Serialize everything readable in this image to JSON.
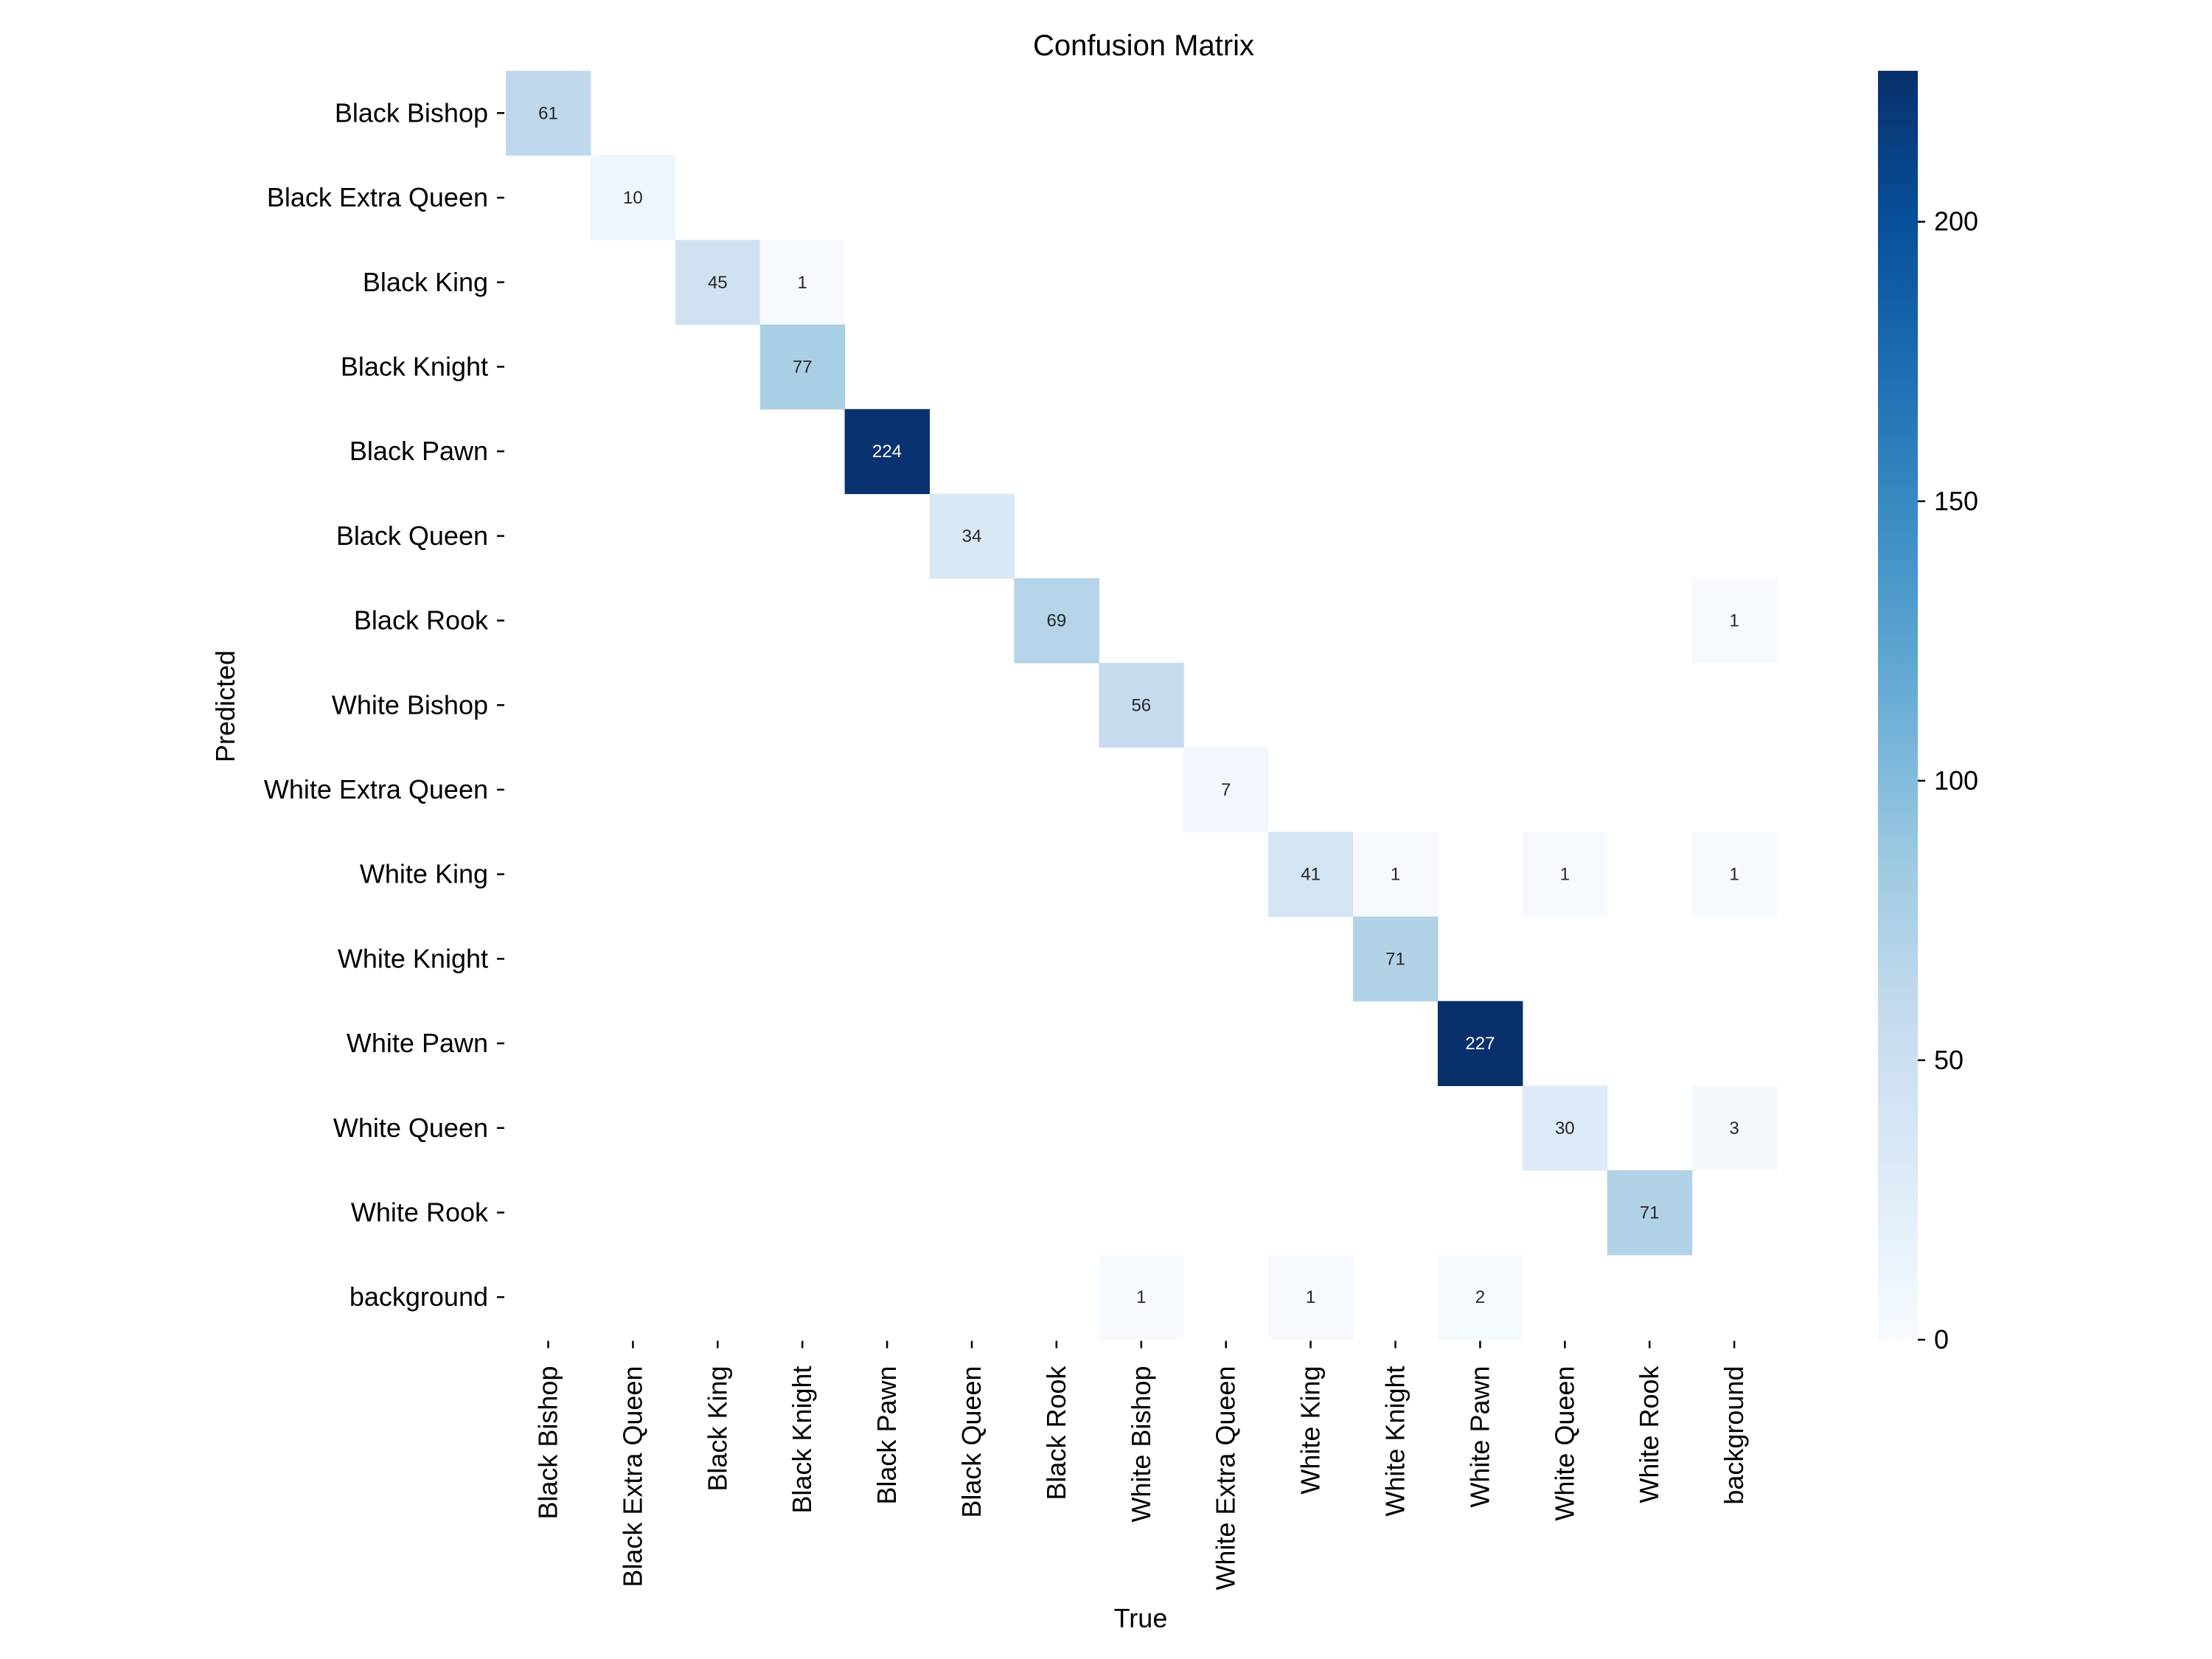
{
  "chart_data": {
    "type": "heatmap",
    "title": "Confusion Matrix",
    "xlabel": "True",
    "ylabel": "Predicted",
    "colormap": "Blues",
    "colormap_stops": [
      "#f7fbff",
      "#deebf7",
      "#c6dbef",
      "#9ecae1",
      "#6baed6",
      "#4292c6",
      "#2171b5",
      "#08519c",
      "#08306b"
    ],
    "value_range": [
      0,
      227
    ],
    "empty_cells_blank": true,
    "grid": false,
    "colorbar": {
      "position": "right",
      "ticks": [
        0,
        50,
        100,
        150,
        200
      ],
      "tick_labels": [
        "0",
        "50",
        "100",
        "150",
        "200"
      ]
    },
    "x_categories": [
      "Black Bishop",
      "Black Extra Queen",
      "Black King",
      "Black Knight",
      "Black Pawn",
      "Black Queen",
      "Black Rook",
      "White Bishop",
      "White Extra Queen",
      "White King",
      "White Knight",
      "White Pawn",
      "White Queen",
      "White Rook",
      "background"
    ],
    "y_categories": [
      "Black Bishop",
      "Black Extra Queen",
      "Black King",
      "Black Knight",
      "Black Pawn",
      "Black Queen",
      "Black Rook",
      "White Bishop",
      "White Extra Queen",
      "White King",
      "White Knight",
      "White Pawn",
      "White Queen",
      "White Rook",
      "background"
    ],
    "matrix": [
      [
        61,
        0,
        0,
        0,
        0,
        0,
        0,
        0,
        0,
        0,
        0,
        0,
        0,
        0,
        0
      ],
      [
        0,
        10,
        0,
        0,
        0,
        0,
        0,
        0,
        0,
        0,
        0,
        0,
        0,
        0,
        0
      ],
      [
        0,
        0,
        45,
        1,
        0,
        0,
        0,
        0,
        0,
        0,
        0,
        0,
        0,
        0,
        0
      ],
      [
        0,
        0,
        0,
        77,
        0,
        0,
        0,
        0,
        0,
        0,
        0,
        0,
        0,
        0,
        0
      ],
      [
        0,
        0,
        0,
        0,
        224,
        0,
        0,
        0,
        0,
        0,
        0,
        0,
        0,
        0,
        0
      ],
      [
        0,
        0,
        0,
        0,
        0,
        34,
        0,
        0,
        0,
        0,
        0,
        0,
        0,
        0,
        0
      ],
      [
        0,
        0,
        0,
        0,
        0,
        0,
        69,
        0,
        0,
        0,
        0,
        0,
        0,
        0,
        1
      ],
      [
        0,
        0,
        0,
        0,
        0,
        0,
        0,
        56,
        0,
        0,
        0,
        0,
        0,
        0,
        0
      ],
      [
        0,
        0,
        0,
        0,
        0,
        0,
        0,
        0,
        7,
        0,
        0,
        0,
        0,
        0,
        0
      ],
      [
        0,
        0,
        0,
        0,
        0,
        0,
        0,
        0,
        0,
        41,
        1,
        0,
        1,
        0,
        1
      ],
      [
        0,
        0,
        0,
        0,
        0,
        0,
        0,
        0,
        0,
        0,
        71,
        0,
        0,
        0,
        0
      ],
      [
        0,
        0,
        0,
        0,
        0,
        0,
        0,
        0,
        0,
        0,
        0,
        227,
        0,
        0,
        0
      ],
      [
        0,
        0,
        0,
        0,
        0,
        0,
        0,
        0,
        0,
        0,
        0,
        0,
        30,
        0,
        3
      ],
      [
        0,
        0,
        0,
        0,
        0,
        0,
        0,
        0,
        0,
        0,
        0,
        0,
        0,
        71,
        0
      ],
      [
        0,
        0,
        0,
        0,
        0,
        0,
        0,
        1,
        0,
        1,
        0,
        2,
        0,
        0,
        0
      ]
    ]
  }
}
